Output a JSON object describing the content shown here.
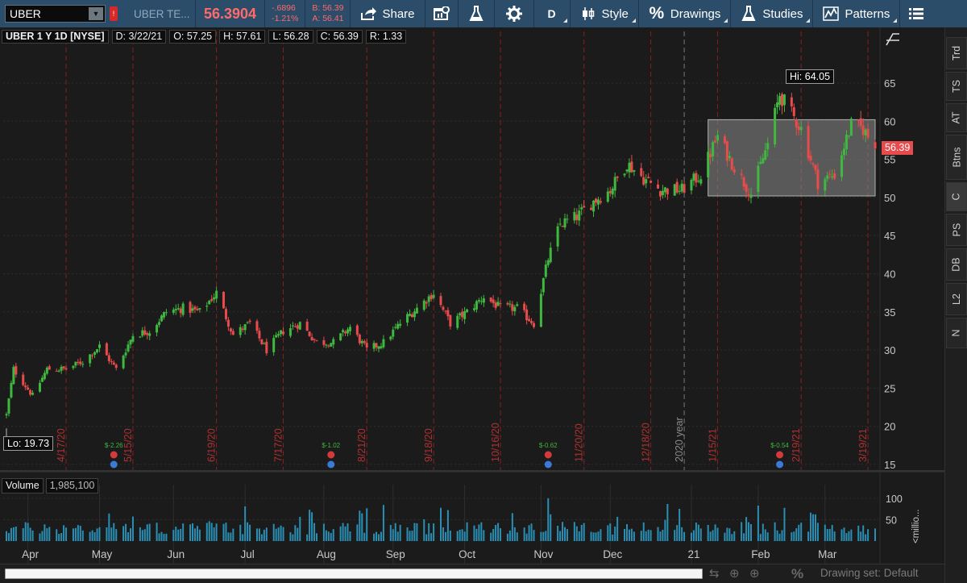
{
  "toolbar": {
    "symbol": "UBER",
    "symbol_name": "UBER TE...",
    "last_price": "56.3904",
    "change": "-.6896",
    "change_pct": "-1.21%",
    "bid": "B: 56.39",
    "ask": "A: 56.41",
    "share_label": "Share",
    "interval_label": "D",
    "style_label": "Style",
    "drawings_label": "Drawings",
    "studies_label": "Studies",
    "patterns_label": "Patterns"
  },
  "chart_header": {
    "symbol": "UBER 1 Y 1D [NYSE]",
    "date": "D: 3/22/21",
    "open": "O: 57.25",
    "high": "H: 57.61",
    "low": "L: 56.28",
    "close": "C: 56.39",
    "range": "R: 1.33"
  },
  "annotations": {
    "hi_label": "Hi: 64.05",
    "lo_label": "Lo: 19.73",
    "price_tag": "56.39",
    "year_marker": "2020 year"
  },
  "volume": {
    "label": "Volume",
    "value": "1,985,100",
    "axis_unit": "<millio...",
    "axis_ticks": [
      "100",
      "50"
    ]
  },
  "price_axis_ticks": [
    "65",
    "60",
    "55",
    "50",
    "45",
    "40",
    "35",
    "30",
    "25",
    "20",
    "15"
  ],
  "month_labels": [
    "Apr",
    "May",
    "Jun",
    "Jul",
    "Aug",
    "Sep",
    "Oct",
    "Nov",
    "Dec",
    "21",
    "Feb",
    "Mar"
  ],
  "expiration_dates": [
    "4/17/20",
    "5/15/20",
    "6/19/20",
    "7/17/20",
    "8/21/20",
    "9/18/20",
    "10/16/20",
    "11/20/20",
    "12/18/20",
    "1/15/21",
    "2/19/21",
    "3/19/21"
  ],
  "earnings": [
    "$-2.26",
    "$-1.02",
    "$-0.62",
    "$-0.54"
  ],
  "right_tabs": [
    "Trd",
    "TS",
    "AT",
    "Btns",
    "C",
    "PS",
    "DB",
    "L2",
    "N"
  ],
  "bottom": {
    "drawing_set": "Drawing set: Default"
  },
  "colors": {
    "up": "#3fb83f",
    "down": "#e84b4b",
    "volume": "#2a8fb4",
    "toolbar_bg": "#2b4d6a",
    "zone": "#8c8c8c"
  },
  "chart_data": {
    "type": "candlestick",
    "title": "UBER 1 Y 1D [NYSE]",
    "ylim": [
      15,
      67
    ],
    "x_range": [
      "3/23/20",
      "3/22/21"
    ],
    "high": 64.05,
    "low": 19.73,
    "last": 56.39,
    "zone": {
      "from": "1/11/21",
      "to": "3/22/21",
      "low": 50.2,
      "high": 60.2
    },
    "close_path": [
      {
        "date": "3/23/20",
        "close": 21.5
      },
      {
        "date": "3/26/20",
        "close": 27.5
      },
      {
        "date": "4/3/20",
        "close": 24.0
      },
      {
        "date": "4/9/20",
        "close": 27.5
      },
      {
        "date": "4/17/20",
        "close": 27.5
      },
      {
        "date": "4/24/20",
        "close": 28.5
      },
      {
        "date": "5/1/20",
        "close": 30.5
      },
      {
        "date": "5/8/20",
        "close": 27.5
      },
      {
        "date": "5/15/20",
        "close": 32.0
      },
      {
        "date": "5/22/20",
        "close": 32.5
      },
      {
        "date": "5/29/20",
        "close": 35.0
      },
      {
        "date": "6/5/20",
        "close": 35.5
      },
      {
        "date": "6/12/20",
        "close": 35.0
      },
      {
        "date": "6/19/20",
        "close": 37.5
      },
      {
        "date": "6/26/20",
        "close": 32.0
      },
      {
        "date": "7/3/20",
        "close": 33.5
      },
      {
        "date": "7/10/20",
        "close": 30.0
      },
      {
        "date": "7/17/20",
        "close": 32.5
      },
      {
        "date": "7/24/20",
        "close": 33.5
      },
      {
        "date": "7/31/20",
        "close": 31.0
      },
      {
        "date": "8/7/20",
        "close": 31.0
      },
      {
        "date": "8/14/20",
        "close": 33.0
      },
      {
        "date": "8/21/20",
        "close": 30.0
      },
      {
        "date": "8/28/20",
        "close": 31.0
      },
      {
        "date": "9/4/20",
        "close": 33.5
      },
      {
        "date": "9/11/20",
        "close": 35.5
      },
      {
        "date": "9/18/20",
        "close": 37.5
      },
      {
        "date": "9/25/20",
        "close": 33.5
      },
      {
        "date": "10/2/20",
        "close": 35.0
      },
      {
        "date": "10/9/20",
        "close": 37.0
      },
      {
        "date": "10/16/20",
        "close": 35.5
      },
      {
        "date": "10/23/20",
        "close": 35.5
      },
      {
        "date": "10/30/20",
        "close": 33.5
      },
      {
        "date": "11/5/20",
        "close": 42.0
      },
      {
        "date": "11/10/20",
        "close": 46.5
      },
      {
        "date": "11/17/20",
        "close": 47.5
      },
      {
        "date": "11/24/20",
        "close": 49.5
      },
      {
        "date": "12/1/20",
        "close": 51.0
      },
      {
        "date": "12/8/20",
        "close": 54.5
      },
      {
        "date": "12/15/20",
        "close": 52.5
      },
      {
        "date": "12/22/20",
        "close": 51.0
      },
      {
        "date": "12/31/20",
        "close": 51.0
      },
      {
        "date": "1/8/21",
        "close": 53.0
      },
      {
        "date": "1/15/21",
        "close": 58.0
      },
      {
        "date": "1/22/21",
        "close": 54.0
      },
      {
        "date": "1/29/21",
        "close": 50.5
      },
      {
        "date": "2/5/21",
        "close": 57.0
      },
      {
        "date": "2/10/21",
        "close": 63.5
      },
      {
        "date": "2/19/21",
        "close": 59.0
      },
      {
        "date": "2/26/21",
        "close": 52.0
      },
      {
        "date": "3/5/21",
        "close": 53.0
      },
      {
        "date": "3/12/21",
        "close": 59.5
      },
      {
        "date": "3/17/21",
        "close": 59.0
      },
      {
        "date": "3/22/21",
        "close": 56.39
      }
    ]
  }
}
